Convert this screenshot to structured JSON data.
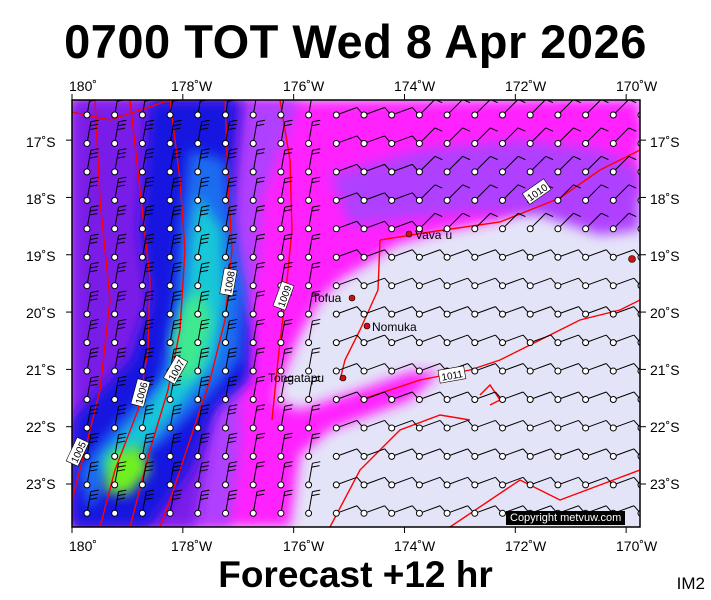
{
  "header": {
    "title": "0700 TOT Wed 8 Apr 2026"
  },
  "footer": {
    "forecast_label": "Forecast +12 hr",
    "corner_code": "IM2"
  },
  "map": {
    "extent": {
      "lon_min": 180,
      "lon_max": 190.25,
      "lat_top": 16.3,
      "lat_bottom": 23.75
    },
    "lon_ticks": [
      {
        "label": "180˚",
        "value": 180
      },
      {
        "label": "178˚W",
        "value": 182
      },
      {
        "label": "176˚W",
        "value": 184
      },
      {
        "label": "174˚W",
        "value": 186
      },
      {
        "label": "172˚W",
        "value": 188
      },
      {
        "label": "170˚W",
        "value": 190
      }
    ],
    "lat_ticks": [
      {
        "label": "17˚S",
        "value": 17
      },
      {
        "label": "18˚S",
        "value": 18
      },
      {
        "label": "19˚S",
        "value": 19
      },
      {
        "label": "20˚S",
        "value": 20
      },
      {
        "label": "21˚S",
        "value": 21
      },
      {
        "label": "22˚S",
        "value": 22
      },
      {
        "label": "23˚S",
        "value": 23
      }
    ],
    "places": [
      {
        "name": "Vava`u",
        "lon": 186.0,
        "lat": 18.65
      },
      {
        "name": "Tofua",
        "lon": 184.65,
        "lat": 19.75
      },
      {
        "name": "Nomuka",
        "lon": 185.25,
        "lat": 20.25
      },
      {
        "name": "Tongatapu",
        "lon": 184.8,
        "lat": 21.15
      }
    ],
    "isobar_labels": [
      "1010",
      "1009",
      "1008",
      "1007",
      "1006",
      "1005",
      "1011"
    ],
    "colors": {
      "calm": "#e4e4f8",
      "light": "#ff22ff",
      "moderate": "#b040ff",
      "fresh": "#7a1ee8",
      "strong": "#1818e0",
      "gale": "#1c6cf0",
      "storm": "#18c8d8",
      "high": "#40e890",
      "extreme": "#70f020",
      "isobar": "#ff0000",
      "place_dot": "#cc1111"
    },
    "copyright": "Copyright metvuw.com"
  }
}
